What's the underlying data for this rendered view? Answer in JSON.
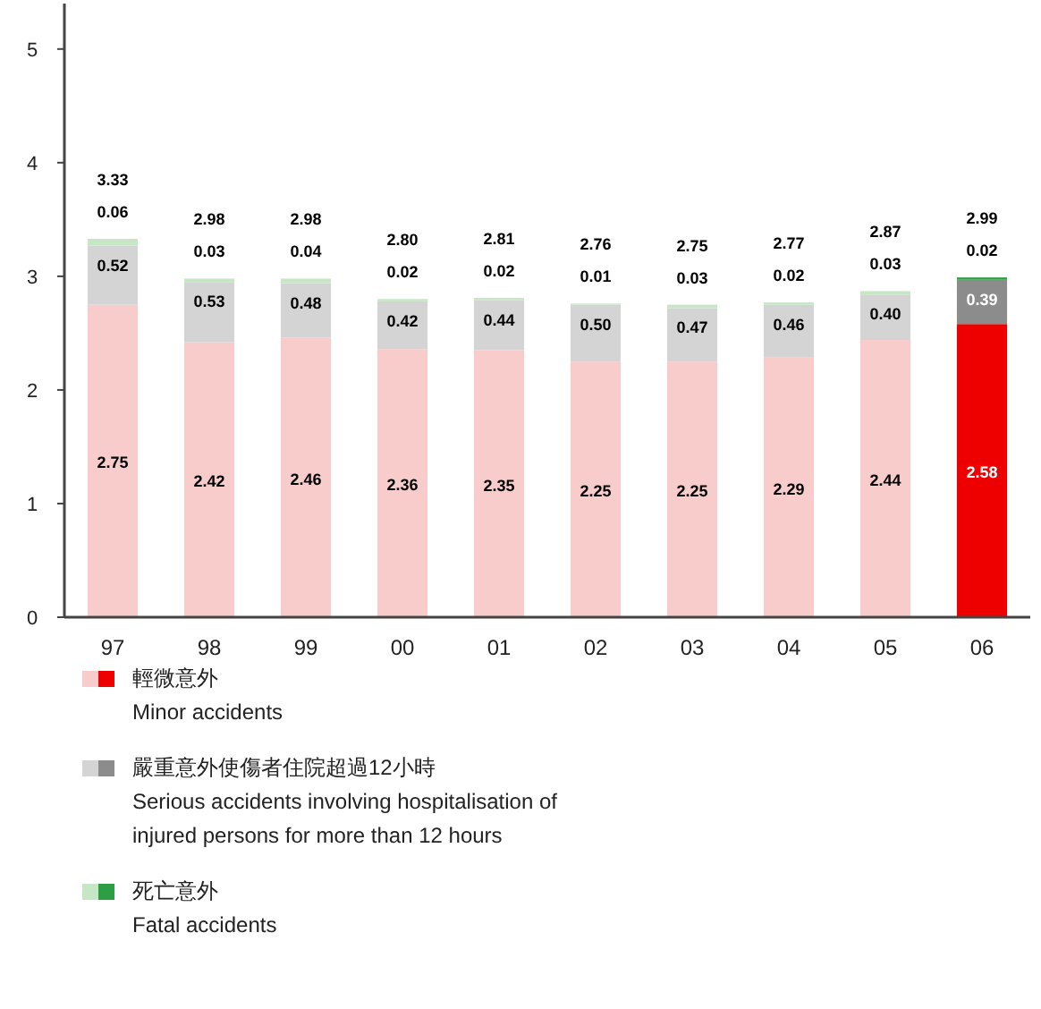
{
  "chart_data": {
    "type": "bar",
    "stacked": true,
    "legend": "bottom",
    "categories": [
      "97",
      "98",
      "99",
      "00",
      "01",
      "02",
      "03",
      "04",
      "05",
      "06"
    ],
    "ylim": [
      0,
      5.4
    ],
    "yticks": [
      0,
      1,
      2,
      3,
      4,
      5
    ],
    "series": [
      {
        "name": "輕微意外\nMinor accidents",
        "colors": [
          "#f9cccc",
          "#f9cccc",
          "#f9cccc",
          "#f9cccc",
          "#f9cccc",
          "#f9cccc",
          "#f9cccc",
          "#f9cccc",
          "#f9cccc",
          "#ee0000"
        ],
        "values": [
          2.75,
          2.42,
          2.46,
          2.36,
          2.35,
          2.25,
          2.25,
          2.29,
          2.44,
          2.58
        ],
        "value_labels": [
          "2.75",
          "2.42",
          "2.46",
          "2.36",
          "2.35",
          "2.25",
          "2.25",
          "2.29",
          "2.44",
          "2.58"
        ]
      },
      {
        "name": "嚴重意外使傷者住院超過12小時\nSerious accidents involving hospitalisation of\ninjured persons for more than 12 hours",
        "colors": [
          "#d4d4d4",
          "#d4d4d4",
          "#d4d4d4",
          "#d4d4d4",
          "#d4d4d4",
          "#d4d4d4",
          "#d4d4d4",
          "#d4d4d4",
          "#d4d4d4",
          "#8c8c8c"
        ],
        "values": [
          0.52,
          0.53,
          0.48,
          0.42,
          0.44,
          0.5,
          0.47,
          0.46,
          0.4,
          0.39
        ],
        "value_labels": [
          "0.52",
          "0.53",
          "0.48",
          "0.42",
          "0.44",
          "0.50",
          "0.47",
          "0.46",
          "0.40",
          "0.39"
        ]
      },
      {
        "name": "死亡意外\nFatal accidents",
        "colors": [
          "#c6e6c6",
          "#c6e6c6",
          "#c6e6c6",
          "#c6e6c6",
          "#c6e6c6",
          "#c6e6c6",
          "#c6e6c6",
          "#c6e6c6",
          "#c6e6c6",
          "#2e9e44"
        ],
        "values": [
          0.06,
          0.03,
          0.04,
          0.02,
          0.02,
          0.01,
          0.03,
          0.02,
          0.03,
          0.02
        ],
        "value_labels": [
          "0.06",
          "0.03",
          "0.04",
          "0.02",
          "0.02",
          "0.01",
          "0.03",
          "0.02",
          "0.03",
          "0.02"
        ]
      }
    ],
    "totals": [
      "3.33",
      "2.98",
      "2.98",
      "2.80",
      "2.81",
      "2.76",
      "2.75",
      "2.77",
      "2.87",
      "2.99"
    ]
  }
}
